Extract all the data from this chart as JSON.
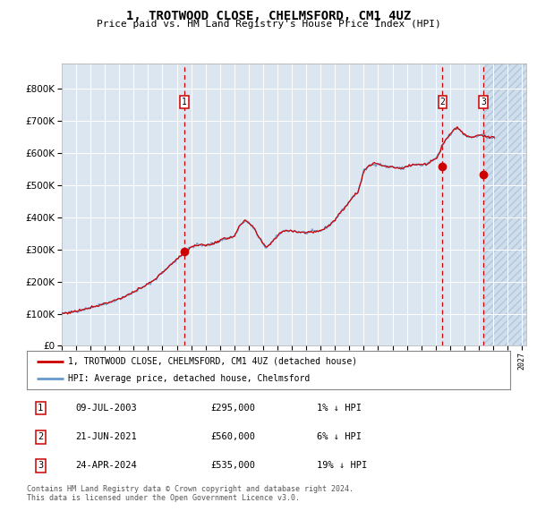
{
  "title": "1, TROTWOOD CLOSE, CHELMSFORD, CM1 4UZ",
  "subtitle": "Price paid vs. HM Land Registry's House Price Index (HPI)",
  "bg_color": "#dce6f1",
  "grid_color": "#ffffff",
  "red_line_color": "#cc0000",
  "blue_line_color": "#6699cc",
  "sale_marker_color": "#cc0000",
  "dashed_line_color": "#cc0000",
  "ylim_min": 0,
  "ylim_max": 880000,
  "yticks": [
    0,
    100000,
    200000,
    300000,
    400000,
    500000,
    600000,
    700000,
    800000
  ],
  "ytick_labels": [
    "£0",
    "£100K",
    "£200K",
    "£300K",
    "£400K",
    "£500K",
    "£600K",
    "£700K",
    "£800K"
  ],
  "legend_line1": "1, TROTWOOD CLOSE, CHELMSFORD, CM1 4UZ (detached house)",
  "legend_line2": "HPI: Average price, detached house, Chelmsford",
  "sale1_price": 295000,
  "sale1_x": 2003.52,
  "sale2_price": 560000,
  "sale2_x": 2021.47,
  "sale3_price": 535000,
  "sale3_x": 2024.31,
  "hatch_start_year": 2024.31,
  "x_min": 1995.0,
  "x_max": 2027.3,
  "table_rows": [
    [
      "1",
      "09-JUL-2003",
      "£295,000",
      "1% ↓ HPI"
    ],
    [
      "2",
      "21-JUN-2021",
      "£560,000",
      "6% ↓ HPI"
    ],
    [
      "3",
      "24-APR-2024",
      "£535,000",
      "19% ↓ HPI"
    ]
  ],
  "footer": "Contains HM Land Registry data © Crown copyright and database right 2024.\nThis data is licensed under the Open Government Licence v3.0.",
  "anchors": [
    [
      1995.0,
      100000
    ],
    [
      1995.5,
      103000
    ],
    [
      1996.0,
      108000
    ],
    [
      1996.5,
      113000
    ],
    [
      1997.0,
      120000
    ],
    [
      1997.5,
      125000
    ],
    [
      1998.0,
      132000
    ],
    [
      1998.5,
      138000
    ],
    [
      1999.0,
      147000
    ],
    [
      1999.5,
      155000
    ],
    [
      2000.0,
      168000
    ],
    [
      2000.5,
      178000
    ],
    [
      2001.0,
      192000
    ],
    [
      2001.5,
      207000
    ],
    [
      2002.0,
      228000
    ],
    [
      2002.5,
      250000
    ],
    [
      2003.0,
      268000
    ],
    [
      2003.5,
      290000
    ],
    [
      2004.0,
      308000
    ],
    [
      2004.5,
      315000
    ],
    [
      2005.0,
      312000
    ],
    [
      2005.5,
      318000
    ],
    [
      2006.0,
      328000
    ],
    [
      2006.5,
      335000
    ],
    [
      2007.0,
      342000
    ],
    [
      2007.4,
      375000
    ],
    [
      2007.8,
      390000
    ],
    [
      2008.3,
      370000
    ],
    [
      2008.8,
      330000
    ],
    [
      2009.2,
      305000
    ],
    [
      2009.5,
      318000
    ],
    [
      2009.8,
      332000
    ],
    [
      2010.2,
      352000
    ],
    [
      2010.6,
      360000
    ],
    [
      2011.0,
      358000
    ],
    [
      2011.5,
      355000
    ],
    [
      2012.0,
      352000
    ],
    [
      2012.5,
      355000
    ],
    [
      2013.0,
      358000
    ],
    [
      2013.5,
      372000
    ],
    [
      2014.0,
      392000
    ],
    [
      2014.4,
      415000
    ],
    [
      2014.7,
      432000
    ],
    [
      2015.0,
      450000
    ],
    [
      2015.3,
      468000
    ],
    [
      2015.6,
      478000
    ],
    [
      2016.0,
      545000
    ],
    [
      2016.3,
      558000
    ],
    [
      2016.6,
      565000
    ],
    [
      2017.0,
      568000
    ],
    [
      2017.3,
      562000
    ],
    [
      2017.6,
      558000
    ],
    [
      2018.0,
      558000
    ],
    [
      2018.3,
      555000
    ],
    [
      2018.6,
      552000
    ],
    [
      2019.0,
      558000
    ],
    [
      2019.3,
      562000
    ],
    [
      2019.6,
      565000
    ],
    [
      2020.0,
      562000
    ],
    [
      2020.3,
      565000
    ],
    [
      2020.6,
      572000
    ],
    [
      2021.0,
      582000
    ],
    [
      2021.3,
      605000
    ],
    [
      2021.5,
      628000
    ],
    [
      2021.8,
      648000
    ],
    [
      2022.1,
      662000
    ],
    [
      2022.3,
      675000
    ],
    [
      2022.5,
      680000
    ],
    [
      2022.7,
      672000
    ],
    [
      2022.9,
      662000
    ],
    [
      2023.1,
      655000
    ],
    [
      2023.3,
      652000
    ],
    [
      2023.5,
      650000
    ],
    [
      2023.7,
      652000
    ],
    [
      2023.9,
      655000
    ],
    [
      2024.1,
      658000
    ],
    [
      2024.3,
      655000
    ],
    [
      2024.5,
      650000
    ],
    [
      2024.8,
      648000
    ],
    [
      2025.0,
      648000
    ]
  ]
}
